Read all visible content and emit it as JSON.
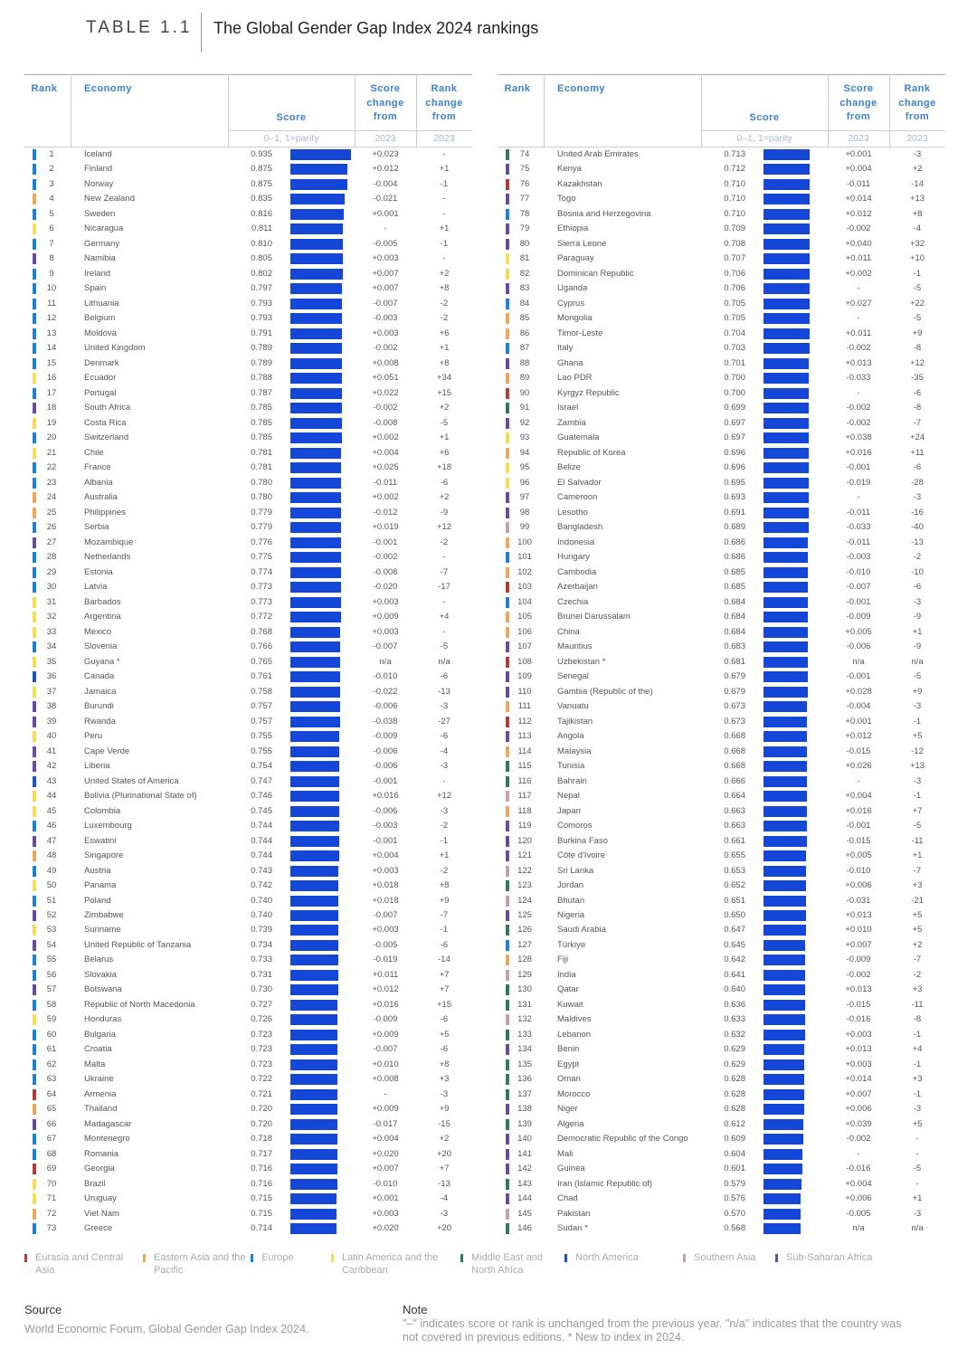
{
  "header": {
    "label": "TABLE 1.1",
    "title": "The Global Gender Gap Index 2024 rankings"
  },
  "columns": {
    "rank": "Rank",
    "economy": "Economy",
    "score": "Score",
    "score_change": "Score change from",
    "rank_change": "Rank change from",
    "score_unit": "0–1, 1=parity",
    "score_change_year": "2023",
    "rank_change_year": "2023"
  },
  "regions": {
    "EA": {
      "label": "Eurasia and Central Asia",
      "color": "#b83a35"
    },
    "AP": {
      "label": "Eastern Asia and the Pacific",
      "color": "#f0a65a"
    },
    "EU": {
      "label": "Europe",
      "color": "#1a80d8"
    },
    "LA": {
      "label": "Latin America and the Caribbean",
      "color": "#f7dc55"
    },
    "ME": {
      "label": "Middle East and North Africa",
      "color": "#2f7a5e"
    },
    "NA": {
      "label": "North America",
      "color": "#1e4fc8"
    },
    "SA": {
      "label": "Southern Asia",
      "color": "#c9a0aa"
    },
    "SS": {
      "label": "Sub-Saharan Africa",
      "color": "#6a4a9e"
    }
  },
  "legend_order": [
    "EA",
    "AP",
    "EU",
    "LA",
    "ME",
    "NA",
    "SA",
    "SS"
  ],
  "rows": [
    [
      1,
      "Iceland",
      "0.935",
      "+0.023",
      "-",
      "EU"
    ],
    [
      2,
      "Finland",
      "0.875",
      "+0.012",
      "+1",
      "EU"
    ],
    [
      3,
      "Norway",
      "0.875",
      "-0.004",
      "-1",
      "EU"
    ],
    [
      4,
      "New Zealand",
      "0.835",
      "-0.021",
      "-",
      "AP"
    ],
    [
      5,
      "Sweden",
      "0.816",
      "+0.001",
      "-",
      "EU"
    ],
    [
      6,
      "Nicaragua",
      "0.811",
      "-",
      "+1",
      "LA"
    ],
    [
      7,
      "Germany",
      "0.810",
      "-0.005",
      "-1",
      "EU"
    ],
    [
      8,
      "Namibia",
      "0.805",
      "+0.003",
      "-",
      "SS"
    ],
    [
      9,
      "Ireland",
      "0.802",
      "+0.007",
      "+2",
      "EU"
    ],
    [
      10,
      "Spain",
      "0.797",
      "+0.007",
      "+8",
      "EU"
    ],
    [
      11,
      "Lithuania",
      "0.793",
      "-0.007",
      "-2",
      "EU"
    ],
    [
      12,
      "Belgium",
      "0.793",
      "-0.003",
      "-2",
      "EU"
    ],
    [
      13,
      "Moldova",
      "0.791",
      "+0.003",
      "+6",
      "EU"
    ],
    [
      14,
      "United Kingdom",
      "0.789",
      "-0.002",
      "+1",
      "EU"
    ],
    [
      15,
      "Denmark",
      "0.789",
      "+0.008",
      "+8",
      "EU"
    ],
    [
      16,
      "Ecuador",
      "0.788",
      "+0.051",
      "+34",
      "LA"
    ],
    [
      17,
      "Portugal",
      "0.787",
      "+0.022",
      "+15",
      "EU"
    ],
    [
      18,
      "South Africa",
      "0.785",
      "-0.002",
      "+2",
      "SS"
    ],
    [
      19,
      "Costa Rica",
      "0.785",
      "-0.008",
      "-5",
      "LA"
    ],
    [
      20,
      "Switzerland",
      "0.785",
      "+0.002",
      "+1",
      "EU"
    ],
    [
      21,
      "Chile",
      "0.781",
      "+0.004",
      "+6",
      "LA"
    ],
    [
      22,
      "France",
      "0.781",
      "+0.025",
      "+18",
      "EU"
    ],
    [
      23,
      "Albania",
      "0.780",
      "-0.011",
      "-6",
      "EU"
    ],
    [
      24,
      "Australia",
      "0.780",
      "+0.002",
      "+2",
      "AP"
    ],
    [
      25,
      "Philippines",
      "0.779",
      "-0.012",
      "-9",
      "AP"
    ],
    [
      26,
      "Serbia",
      "0.779",
      "+0.019",
      "+12",
      "EU"
    ],
    [
      27,
      "Mozambique",
      "0.776",
      "-0.001",
      "-2",
      "SS"
    ],
    [
      28,
      "Netherlands",
      "0.775",
      "-0.002",
      "-",
      "EU"
    ],
    [
      29,
      "Estonia",
      "0.774",
      "-0.008",
      "-7",
      "EU"
    ],
    [
      30,
      "Latvia",
      "0.773",
      "-0.020",
      "-17",
      "EU"
    ],
    [
      31,
      "Barbados",
      "0.773",
      "+0.003",
      "-",
      "LA"
    ],
    [
      32,
      "Argentina",
      "0.772",
      "+0.009",
      "+4",
      "LA"
    ],
    [
      33,
      "Mexico",
      "0.768",
      "+0.003",
      "-",
      "LA"
    ],
    [
      34,
      "Slovenia",
      "0.766",
      "-0.007",
      "-5",
      "EU"
    ],
    [
      35,
      "Guyana *",
      "0.765",
      "n/a",
      "n/a",
      "LA"
    ],
    [
      36,
      "Canada",
      "0.761",
      "-0.010",
      "-6",
      "NA"
    ],
    [
      37,
      "Jamaica",
      "0.758",
      "-0.022",
      "-13",
      "LA"
    ],
    [
      38,
      "Burundi",
      "0.757",
      "-0.006",
      "-3",
      "SS"
    ],
    [
      39,
      "Rwanda",
      "0.757",
      "-0.038",
      "-27",
      "SS"
    ],
    [
      40,
      "Peru",
      "0.755",
      "-0.009",
      "-6",
      "LA"
    ],
    [
      41,
      "Cape Verde",
      "0.755",
      "-0.006",
      "-4",
      "SS"
    ],
    [
      42,
      "Liberia",
      "0.754",
      "-0.006",
      "-3",
      "SS"
    ],
    [
      43,
      "United States of America",
      "0.747",
      "-0.001",
      "-",
      "NA"
    ],
    [
      44,
      "Bolivia (Plurinational State of)",
      "0.746",
      "+0.016",
      "+12",
      "LA"
    ],
    [
      45,
      "Colombia",
      "0.745",
      "-0.006",
      "-3",
      "LA"
    ],
    [
      46,
      "Luxembourg",
      "0.744",
      "-0.003",
      "-2",
      "EU"
    ],
    [
      47,
      "Eswatini",
      "0.744",
      "-0.001",
      "-1",
      "SS"
    ],
    [
      48,
      "Singapore",
      "0.744",
      "+0.004",
      "+1",
      "AP"
    ],
    [
      49,
      "Austria",
      "0.743",
      "+0.003",
      "-2",
      "EU"
    ],
    [
      50,
      "Panama",
      "0.742",
      "+0.018",
      "+8",
      "LA"
    ],
    [
      51,
      "Poland",
      "0.740",
      "+0.018",
      "+9",
      "EU"
    ],
    [
      52,
      "Zimbabwe",
      "0.740",
      "-0.007",
      "-7",
      "SS"
    ],
    [
      53,
      "Suriname",
      "0.739",
      "+0.003",
      "-1",
      "LA"
    ],
    [
      54,
      "United Republic of Tanzania",
      "0.734",
      "-0.005",
      "-6",
      "SS"
    ],
    [
      55,
      "Belarus",
      "0.733",
      "-0.019",
      "-14",
      "EU"
    ],
    [
      56,
      "Slovakia",
      "0.731",
      "+0.011",
      "+7",
      "EU"
    ],
    [
      57,
      "Botswana",
      "0.730",
      "+0.012",
      "+7",
      "SS"
    ],
    [
      58,
      "Republic of North Macedonia",
      "0.727",
      "+0.016",
      "+15",
      "EU"
    ],
    [
      59,
      "Honduras",
      "0.726",
      "-0.009",
      "-6",
      "LA"
    ],
    [
      60,
      "Bulgaria",
      "0.723",
      "+0.009",
      "+5",
      "EU"
    ],
    [
      61,
      "Croatia",
      "0.723",
      "-0.007",
      "-6",
      "EU"
    ],
    [
      62,
      "Malta",
      "0.723",
      "+0.010",
      "+8",
      "EU"
    ],
    [
      63,
      "Ukraine",
      "0.722",
      "+0.008",
      "+3",
      "EU"
    ],
    [
      64,
      "Armenia",
      "0.721",
      "-",
      "-3",
      "EA"
    ],
    [
      65,
      "Thailand",
      "0.720",
      "+0.009",
      "+9",
      "AP"
    ],
    [
      66,
      "Madagascar",
      "0.720",
      "-0.017",
      "-15",
      "SS"
    ],
    [
      67,
      "Montenegro",
      "0.718",
      "+0.004",
      "+2",
      "EU"
    ],
    [
      68,
      "Romania",
      "0.717",
      "+0.020",
      "+20",
      "EU"
    ],
    [
      69,
      "Georgia",
      "0.716",
      "+0.007",
      "+7",
      "EA"
    ],
    [
      70,
      "Brazil",
      "0.716",
      "-0.010",
      "-13",
      "LA"
    ],
    [
      71,
      "Uruguay",
      "0.715",
      "+0.001",
      "-4",
      "LA"
    ],
    [
      72,
      "Viet Nam",
      "0.715",
      "+0.003",
      "-3",
      "AP"
    ],
    [
      73,
      "Greece",
      "0.714",
      "+0.020",
      "+20",
      "EU"
    ],
    [
      74,
      "United Arab Emirates",
      "0.713",
      "+0.001",
      "-3",
      "ME"
    ],
    [
      75,
      "Kenya",
      "0.712",
      "+0.004",
      "+2",
      "SS"
    ],
    [
      76,
      "Kazakhstan",
      "0.710",
      "-0.011",
      "-14",
      "EA"
    ],
    [
      77,
      "Togo",
      "0.710",
      "+0.014",
      "+13",
      "SS"
    ],
    [
      78,
      "Bosnia and Herzegovina",
      "0.710",
      "+0.012",
      "+8",
      "EU"
    ],
    [
      79,
      "Ethiopia",
      "0.709",
      "-0.002",
      "-4",
      "SS"
    ],
    [
      80,
      "Sierra Leone",
      "0.708",
      "+0.040",
      "+32",
      "SS"
    ],
    [
      81,
      "Paraguay",
      "0.707",
      "+0.011",
      "+10",
      "LA"
    ],
    [
      82,
      "Dominican Republic",
      "0.706",
      "+0.002",
      "-1",
      "LA"
    ],
    [
      83,
      "Uganda",
      "0.706",
      "-",
      "-5",
      "SS"
    ],
    [
      84,
      "Cyprus",
      "0.705",
      "+0.027",
      "+22",
      "EU"
    ],
    [
      85,
      "Mongolia",
      "0.705",
      "-",
      "-5",
      "AP"
    ],
    [
      86,
      "Timor-Leste",
      "0.704",
      "+0.011",
      "+9",
      "AP"
    ],
    [
      87,
      "Italy",
      "0.703",
      "-0.002",
      "-8",
      "EU"
    ],
    [
      88,
      "Ghana",
      "0.701",
      "+0.013",
      "+12",
      "SS"
    ],
    [
      89,
      "Lao PDR",
      "0.700",
      "-0.033",
      "-35",
      "AP"
    ],
    [
      90,
      "Kyrgyz Republic",
      "0.700",
      "-",
      "-6",
      "EA"
    ],
    [
      91,
      "Israel",
      "0.699",
      "-0.002",
      "-8",
      "ME"
    ],
    [
      92,
      "Zambia",
      "0.697",
      "-0.002",
      "-7",
      "SS"
    ],
    [
      93,
      "Guatemala",
      "0.697",
      "+0.038",
      "+24",
      "LA"
    ],
    [
      94,
      "Republic of Korea",
      "0.696",
      "+0.016",
      "+11",
      "AP"
    ],
    [
      95,
      "Belize",
      "0.696",
      "-0.001",
      "-6",
      "LA"
    ],
    [
      96,
      "El Salvador",
      "0.695",
      "-0.019",
      "-28",
      "LA"
    ],
    [
      97,
      "Cameroon",
      "0.693",
      "-",
      "-3",
      "SS"
    ],
    [
      98,
      "Lesotho",
      "0.691",
      "-0.011",
      "-16",
      "SS"
    ],
    [
      99,
      "Bangladesh",
      "0.689",
      "-0.033",
      "-40",
      "SA"
    ],
    [
      100,
      "Indonesia",
      "0.686",
      "-0.011",
      "-13",
      "AP"
    ],
    [
      101,
      "Hungary",
      "0.686",
      "-0.003",
      "-2",
      "EU"
    ],
    [
      102,
      "Cambodia",
      "0.685",
      "-0.010",
      "-10",
      "AP"
    ],
    [
      103,
      "Azerbaijan",
      "0.685",
      "-0.007",
      "-6",
      "EA"
    ],
    [
      104,
      "Czechia",
      "0.684",
      "-0.001",
      "-3",
      "EU"
    ],
    [
      105,
      "Brunei Darussalam",
      "0.684",
      "-0.009",
      "-9",
      "AP"
    ],
    [
      106,
      "China",
      "0.684",
      "+0.005",
      "+1",
      "AP"
    ],
    [
      107,
      "Mauritius",
      "0.683",
      "-0.006",
      "-9",
      "SS"
    ],
    [
      108,
      "Uzbekistan *",
      "0.681",
      "n/a",
      "n/a",
      "EA"
    ],
    [
      109,
      "Senegal",
      "0.679",
      "-0.001",
      "-5",
      "SS"
    ],
    [
      110,
      "Gambia (Republic of the)",
      "0.679",
      "+0.028",
      "+9",
      "SS"
    ],
    [
      111,
      "Vanuatu",
      "0.673",
      "-0.004",
      "-3",
      "AP"
    ],
    [
      112,
      "Tajikistan",
      "0.673",
      "+0.001",
      "-1",
      "EA"
    ],
    [
      113,
      "Angola",
      "0.668",
      "+0.012",
      "+5",
      "SS"
    ],
    [
      114,
      "Malaysia",
      "0.668",
      "-0.015",
      "-12",
      "AP"
    ],
    [
      115,
      "Tunisia",
      "0.668",
      "+0.026",
      "+13",
      "ME"
    ],
    [
      116,
      "Bahrain",
      "0.666",
      "-",
      "-3",
      "ME"
    ],
    [
      117,
      "Nepal",
      "0.664",
      "+0.004",
      "-1",
      "SA"
    ],
    [
      118,
      "Japan",
      "0.663",
      "+0.016",
      "+7",
      "AP"
    ],
    [
      119,
      "Comoros",
      "0.663",
      "-0.001",
      "-5",
      "SS"
    ],
    [
      120,
      "Burkina Faso",
      "0.661",
      "-0.015",
      "-11",
      "SS"
    ],
    [
      121,
      "Côte d'Ivoire",
      "0.655",
      "+0.005",
      "+1",
      "SS"
    ],
    [
      122,
      "Sri Lanka",
      "0.653",
      "-0.010",
      "-7",
      "SA"
    ],
    [
      123,
      "Jordan",
      "0.652",
      "+0.006",
      "+3",
      "ME"
    ],
    [
      124,
      "Bhutan",
      "0.651",
      "-0.031",
      "-21",
      "SA"
    ],
    [
      125,
      "Nigeria",
      "0.650",
      "+0.013",
      "+5",
      "SS"
    ],
    [
      126,
      "Saudi Arabia",
      "0.647",
      "+0.010",
      "+5",
      "ME"
    ],
    [
      127,
      "Türkiye",
      "0.645",
      "+0.007",
      "+2",
      "EU"
    ],
    [
      128,
      "Fiji",
      "0.642",
      "-0.009",
      "-7",
      "AP"
    ],
    [
      129,
      "India",
      "0.641",
      "-0.002",
      "-2",
      "SA"
    ],
    [
      130,
      "Qatar",
      "0.640",
      "+0.013",
      "+3",
      "ME"
    ],
    [
      131,
      "Kuwait",
      "0.636",
      "-0.015",
      "-11",
      "ME"
    ],
    [
      132,
      "Maldives",
      "0.633",
      "-0.016",
      "-8",
      "SA"
    ],
    [
      133,
      "Lebanon",
      "0.632",
      "+0.003",
      "-1",
      "ME"
    ],
    [
      134,
      "Benin",
      "0.629",
      "+0.013",
      "+4",
      "SS"
    ],
    [
      135,
      "Egypt",
      "0.629",
      "+0.003",
      "-1",
      "ME"
    ],
    [
      136,
      "Oman",
      "0.628",
      "+0.014",
      "+3",
      "ME"
    ],
    [
      137,
      "Morocco",
      "0.628",
      "+0.007",
      "-1",
      "ME"
    ],
    [
      138,
      "Niger",
      "0.628",
      "+0.006",
      "-3",
      "SS"
    ],
    [
      139,
      "Algeria",
      "0.612",
      "+0.039",
      "+5",
      "ME"
    ],
    [
      140,
      "Democratic Republic of the Congo",
      "0.609",
      "-0.002",
      "-",
      "SS"
    ],
    [
      141,
      "Mali",
      "0.604",
      "-",
      "-",
      "SS"
    ],
    [
      142,
      "Guinea",
      "0.601",
      "-0.016",
      "-5",
      "SS"
    ],
    [
      143,
      "Iran (Islamic Republic of)",
      "0.579",
      "+0.004",
      "-",
      "ME"
    ],
    [
      144,
      "Chad",
      "0.576",
      "+0.006",
      "+1",
      "SS"
    ],
    [
      145,
      "Pakistan",
      "0.570",
      "-0.005",
      "-3",
      "SA"
    ],
    [
      146,
      "Sudan *",
      "0.568",
      "n/a",
      "n/a",
      "ME"
    ]
  ],
  "source": {
    "heading": "Source",
    "text": "World Economic Forum, Global Gender Gap Index 2024."
  },
  "note": {
    "heading": "Note",
    "text": "\"–\" indicates score or rank is unchanged from the previous year. \"n/a\" indicates that the country was not covered in previous editions. * New to index in 2024."
  }
}
